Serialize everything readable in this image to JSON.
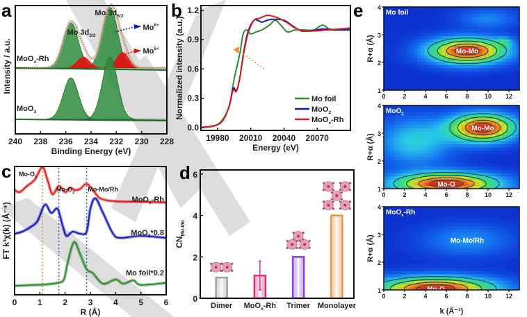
{
  "figure": {
    "panel_letters": [
      "a",
      "b",
      "c",
      "d",
      "e"
    ]
  },
  "chart_data": [
    {
      "panel": "a",
      "type": "line",
      "title": "",
      "xlabel": "Binding Energy (eV)",
      "ylabel": "Intensity / a.u.",
      "xlim": [
        240,
        228
      ],
      "xticks": [
        240,
        238,
        236,
        234,
        232,
        230,
        228
      ],
      "annotations": {
        "peak1": "Mo 3d",
        "peak1_sub": "3/2",
        "peak2": "Mo 3d",
        "peak2_sub": "5/2",
        "mo6": "Mo",
        "mo6_sup": "6+",
        "mo5": "Mo",
        "mo5_sup": "5+"
      },
      "series": [
        {
          "name": "MoOx-Rh",
          "label": "MoO",
          "label_sub": "x",
          "label_tail": "-Rh",
          "color": "#2e7d32",
          "peaks": [
            {
              "center": 235.6,
              "height": 1.0,
              "width": 0.6
            },
            {
              "center": 232.5,
              "height": 1.35,
              "width": 0.6
            }
          ],
          "mo5_peaks": [
            {
              "center": 234.6,
              "height": 0.25,
              "width": 0.5
            },
            {
              "center": 231.5,
              "height": 0.35,
              "width": 0.5
            }
          ],
          "raw_color": "#c4a484"
        },
        {
          "name": "MoO3",
          "label": "MoO",
          "label_sub": "3",
          "label_tail": "",
          "color": "#2e7d32",
          "peaks": [
            {
              "center": 235.6,
              "height": 1.0,
              "width": 0.6
            },
            {
              "center": 232.5,
              "height": 1.5,
              "width": 0.6
            }
          ]
        }
      ]
    },
    {
      "panel": "b",
      "type": "line",
      "title": "",
      "xlabel": "Energy (eV)",
      "ylabel": "Normalized intensity (a.u.)",
      "xlim": [
        19965,
        20100
      ],
      "ylim": [
        -0.03,
        1.25
      ],
      "xticks": [
        19980,
        20010,
        20040,
        20070
      ],
      "yticks": [
        "0.0",
        "0.3",
        "0.6",
        "0.9",
        "1.2"
      ],
      "legend_position": "bottom-right",
      "series": [
        {
          "name": "Mo foil",
          "label": "Mo foil",
          "label_sub": "",
          "label_tail": "",
          "color": "#2e8b2e",
          "points": [
            [
              19965,
              0
            ],
            [
              19980,
              0.03
            ],
            [
              19990,
              0.2
            ],
            [
              19995,
              0.5
            ],
            [
              20000,
              0.75
            ],
            [
              20003,
              0.95
            ],
            [
              20006,
              1.0
            ],
            [
              20010,
              0.96
            ],
            [
              20015,
              0.98
            ],
            [
              20020,
              1.0
            ],
            [
              20027,
              1.05
            ],
            [
              20032,
              1.1
            ],
            [
              20037,
              1.05
            ],
            [
              20043,
              0.98
            ],
            [
              20050,
              1.0
            ],
            [
              20060,
              1.0
            ],
            [
              20067,
              1.0
            ],
            [
              20075,
              1.05
            ],
            [
              20082,
              1.0
            ],
            [
              20090,
              1.0
            ],
            [
              20100,
              1.01
            ]
          ]
        },
        {
          "name": "MoO2",
          "label": "MoO",
          "label_sub": "2",
          "label_tail": "",
          "color": "#1a1aa8",
          "points": [
            [
              19965,
              0
            ],
            [
              19982,
              0.04
            ],
            [
              19990,
              0.2
            ],
            [
              19994,
              0.4
            ],
            [
              19997,
              0.38
            ],
            [
              20000,
              0.5
            ],
            [
              20004,
              0.8
            ],
            [
              20008,
              1.0
            ],
            [
              20013,
              1.1
            ],
            [
              20016,
              1.1
            ],
            [
              20020,
              1.08
            ],
            [
              20025,
              1.1
            ],
            [
              20030,
              1.11
            ],
            [
              20040,
              1.1
            ],
            [
              20048,
              1.04
            ],
            [
              20056,
              0.99
            ],
            [
              20065,
              0.99
            ],
            [
              20075,
              1.01
            ],
            [
              20090,
              1.0
            ],
            [
              20100,
              1.0
            ]
          ]
        },
        {
          "name": "MoOx-Rh",
          "label": "MoO",
          "label_sub": "x",
          "label_tail": "-Rh",
          "color": "#d42020",
          "points": [
            [
              19965,
              0
            ],
            [
              19982,
              0.04
            ],
            [
              19990,
              0.2
            ],
            [
              19994,
              0.38
            ],
            [
              19997,
              0.37
            ],
            [
              20000,
              0.5
            ],
            [
              20004,
              0.78
            ],
            [
              20008,
              0.98
            ],
            [
              20013,
              1.1
            ],
            [
              20018,
              1.12
            ],
            [
              20025,
              1.15
            ],
            [
              20033,
              1.13
            ],
            [
              20042,
              1.08
            ],
            [
              20050,
              1.02
            ],
            [
              20058,
              0.99
            ],
            [
              20068,
              0.99
            ],
            [
              20080,
              1.0
            ],
            [
              20090,
              1.01
            ],
            [
              20100,
              1.02
            ]
          ]
        }
      ]
    },
    {
      "panel": "c",
      "type": "line",
      "title": "",
      "xlabel": "R (Å)",
      "ylabel": "FT k³χ(k) (Å⁻⁴)",
      "xlim": [
        0,
        6
      ],
      "xticks": [
        0,
        1,
        2,
        3,
        4,
        5,
        6
      ],
      "annotations": {
        "mo_o1": "Mo-O",
        "mo_o1_sub": "1",
        "mo_o2": "Mo-O",
        "mo_o2_sub": "2",
        "mo_mo_rh": "Mo-Mo/Rh"
      },
      "reference_lines": [
        {
          "x": 1.1,
          "color": "#e08a30"
        },
        {
          "x": 1.75,
          "color": "#7a3fd0"
        },
        {
          "x": 2.85,
          "color": "#2e6b8a"
        }
      ],
      "series": [
        {
          "name": "MoOx-Rh",
          "label": "MoO",
          "label_sub": "x",
          "label_tail": "-Rh",
          "color": "#e02020",
          "points": [
            [
              0,
              0.35
            ],
            [
              0.2,
              0.3
            ],
            [
              0.5,
              0.45
            ],
            [
              0.8,
              0.6
            ],
            [
              1.1,
              0.9
            ],
            [
              1.3,
              0.6
            ],
            [
              1.5,
              0.25
            ],
            [
              1.75,
              0.45
            ],
            [
              2.0,
              0.3
            ],
            [
              2.2,
              0.4
            ],
            [
              2.4,
              0.35
            ],
            [
              2.6,
              0.38
            ],
            [
              2.85,
              0.5
            ],
            [
              3.1,
              0.35
            ],
            [
              3.4,
              0.15
            ],
            [
              4,
              0.08
            ],
            [
              5,
              0.07
            ],
            [
              6,
              0.05
            ]
          ]
        },
        {
          "name": "MoO2*0.8",
          "label": "MoO",
          "label_sub": "2",
          "label_tail": "*0.8",
          "color": "#1a1ab8",
          "points": [
            [
              0,
              0.3
            ],
            [
              0.3,
              0.35
            ],
            [
              0.6,
              0.45
            ],
            [
              0.9,
              0.6
            ],
            [
              1.2,
              1.0
            ],
            [
              1.45,
              0.8
            ],
            [
              1.7,
              0.9
            ],
            [
              1.9,
              0.5
            ],
            [
              2.05,
              0.25
            ],
            [
              2.3,
              0.35
            ],
            [
              2.6,
              0.3
            ],
            [
              2.85,
              0.35
            ],
            [
              3.0,
              0.9
            ],
            [
              3.2,
              1.15
            ],
            [
              3.5,
              0.8
            ],
            [
              3.9,
              0.3
            ],
            [
              4.2,
              0.2
            ],
            [
              5.0,
              0.25
            ],
            [
              6,
              0.2
            ]
          ]
        },
        {
          "name": "Mo foil*0.2",
          "label": "Mo foil*0.2",
          "label_sub": "",
          "label_tail": "",
          "color": "#2e8b2e",
          "points": [
            [
              0,
              0.05
            ],
            [
              0.8,
              0.07
            ],
            [
              1.2,
              0.08
            ],
            [
              1.7,
              0.12
            ],
            [
              1.95,
              0.2
            ],
            [
              2.1,
              0.6
            ],
            [
              2.35,
              1.1
            ],
            [
              2.6,
              0.8
            ],
            [
              2.85,
              0.45
            ],
            [
              3.1,
              0.35
            ],
            [
              3.5,
              0.1
            ],
            [
              4.0,
              0.2
            ],
            [
              4.3,
              0.1
            ],
            [
              4.7,
              0.18
            ],
            [
              5.0,
              0.07
            ],
            [
              6,
              0.12
            ]
          ]
        }
      ]
    },
    {
      "panel": "d",
      "type": "bar",
      "title": "",
      "xlabel": "",
      "ylabel": "CN",
      "ylabel_sub": "Mo-Mo",
      "ylim": [
        0,
        6.2
      ],
      "yticks": [
        0,
        2,
        4,
        6
      ],
      "categories": [
        "Dimer",
        "MoOx-Rh",
        "Trimer",
        "Monolayer"
      ],
      "category_labels": [
        {
          "text": "Dimer",
          "sub": "",
          "tail": ""
        },
        {
          "text": "MoO",
          "sub": "x",
          "tail": "-Rh"
        },
        {
          "text": "Trimer",
          "sub": "",
          "tail": ""
        },
        {
          "text": "Monolayer",
          "sub": "",
          "tail": ""
        }
      ],
      "values": [
        1.0,
        1.1,
        2.0,
        4.0
      ],
      "error_bars": [
        null,
        [
          0.4,
          1.8
        ],
        null,
        null
      ],
      "colors": [
        "#a0a0a0",
        "#e0307a",
        "#8a3fe0",
        "#f09040"
      ],
      "cluster_atoms": [
        2,
        0,
        3,
        5
      ]
    },
    {
      "panel": "e",
      "type": "heatmap",
      "xlabel": "k (Å⁻¹)",
      "ylabel": "R+α (Å)",
      "xlim": [
        0,
        13
      ],
      "ylim": [
        1,
        4
      ],
      "xticks": [
        0,
        2,
        4,
        6,
        8,
        10,
        12
      ],
      "yticks": [
        1,
        2,
        3,
        4
      ],
      "maps": [
        {
          "name": "Mo foil",
          "label": "Mo foil",
          "label_sub": "",
          "peaks": [
            {
              "k": 8,
              "r": 2.42,
              "amp": 1.0,
              "sk": 2.6,
              "sr": 0.32,
              "label": "Mo-Mo"
            },
            {
              "k": 11.5,
              "r": 2.75,
              "amp": 0.25,
              "sk": 0.6,
              "sr": 0.12,
              "label": ""
            },
            {
              "k": 10,
              "r": 3.6,
              "amp": 0.2,
              "sk": 2.0,
              "sr": 0.25,
              "label": ""
            }
          ]
        },
        {
          "name": "MoO2",
          "label": "MoO",
          "label_sub": "2",
          "peaks": [
            {
              "k": 9.5,
              "r": 3.2,
              "amp": 1.0,
              "sk": 2.2,
              "sr": 0.35,
              "label": "Mo-Mo"
            },
            {
              "k": 6,
              "r": 1.18,
              "amp": 1.0,
              "sk": 3.5,
              "sr": 0.28,
              "label": "Mo-O"
            },
            {
              "k": 3,
              "r": 2.7,
              "amp": 0.35,
              "sk": 2.5,
              "sr": 0.6,
              "label": ""
            }
          ]
        },
        {
          "name": "MoOx-Rh",
          "label": "MoO",
          "label_sub": "x",
          "label_tail": "-Rh",
          "peaks": [
            {
              "k": 5,
              "r": 1.05,
              "amp": 1.0,
              "sk": 4.0,
              "sr": 0.3,
              "label": "Mo-O"
            },
            {
              "k": 8,
              "r": 2.8,
              "amp": 0.22,
              "sk": 3.0,
              "sr": 0.4,
              "label": "Mo-Mo/Rh"
            }
          ]
        }
      ]
    }
  ]
}
